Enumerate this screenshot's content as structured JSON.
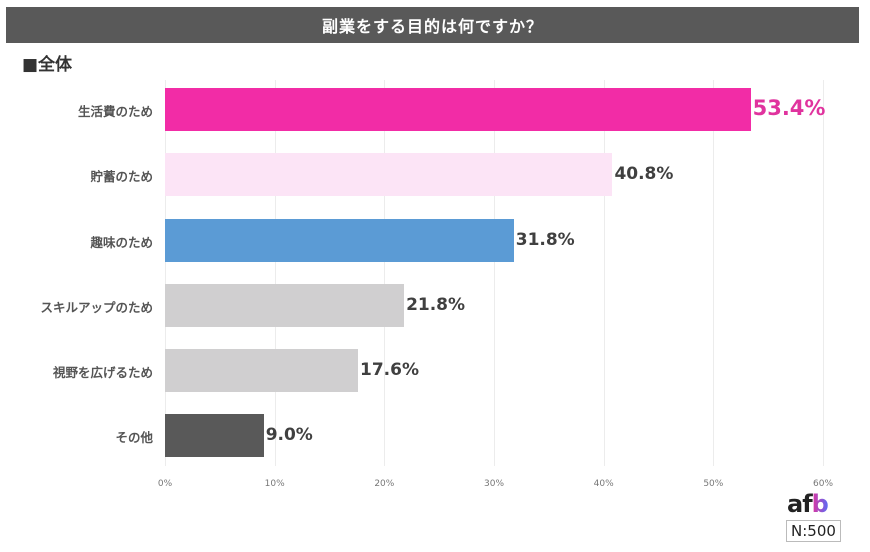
{
  "header": {
    "title": "副業をする目的は何ですか？"
  },
  "subtitle": "■全体",
  "chart_data": {
    "type": "bar",
    "orientation": "horizontal",
    "title": "副業をする目的は何ですか？",
    "subtitle": "■全体",
    "categories": [
      "生活費のため",
      "貯蓄のため",
      "趣味のため",
      "スキルアップのため",
      "視野を広げるため",
      "その他"
    ],
    "values": [
      53.4,
      40.8,
      31.8,
      21.8,
      17.6,
      9.0
    ],
    "value_labels": [
      "53.4%",
      "40.8%",
      "31.8%",
      "21.8%",
      "17.6%",
      "9.0%"
    ],
    "bar_colors": [
      "#f22ca6",
      "#fce4f6",
      "#5b9bd5",
      "#d0cfd0",
      "#d0cfd0",
      "#595959"
    ],
    "xlabel": "",
    "ylabel": "",
    "xlim": [
      0,
      60
    ],
    "x_ticks": [
      "0%",
      "10%",
      "20%",
      "30%",
      "40%",
      "50%",
      "60%"
    ],
    "grid": true,
    "legend": null,
    "highlight_color": "#e0339e"
  },
  "footer": {
    "logo_a": "af",
    "logo_b": "b",
    "sample_size": "N:500"
  }
}
